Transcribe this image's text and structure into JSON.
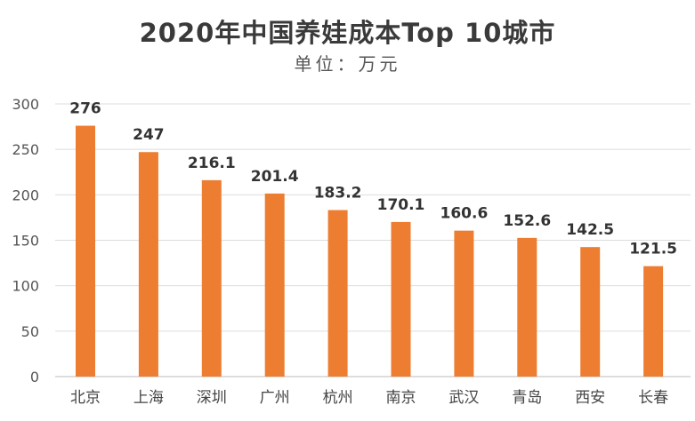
{
  "chart_data": {
    "type": "bar",
    "title": "2020年中国养娃成本Top 10城市",
    "subtitle": "单位：万元",
    "categories": [
      "北京",
      "上海",
      "深圳",
      "广州",
      "杭州",
      "南京",
      "武汉",
      "青岛",
      "西安",
      "长春"
    ],
    "values": [
      276,
      247,
      216.1,
      201.4,
      183.2,
      170.1,
      160.6,
      152.6,
      142.5,
      121.5
    ],
    "data_labels": [
      "276",
      "247",
      "216.1",
      "201.4",
      "183.2",
      "170.1",
      "160.6",
      "152.6",
      "142.5",
      "121.5"
    ],
    "xlabel": "",
    "ylabel": "",
    "ylim": [
      0,
      300
    ],
    "yticks": [
      0,
      50,
      100,
      150,
      200,
      250,
      300
    ],
    "grid": true,
    "bar_color": "#ED7D31"
  }
}
